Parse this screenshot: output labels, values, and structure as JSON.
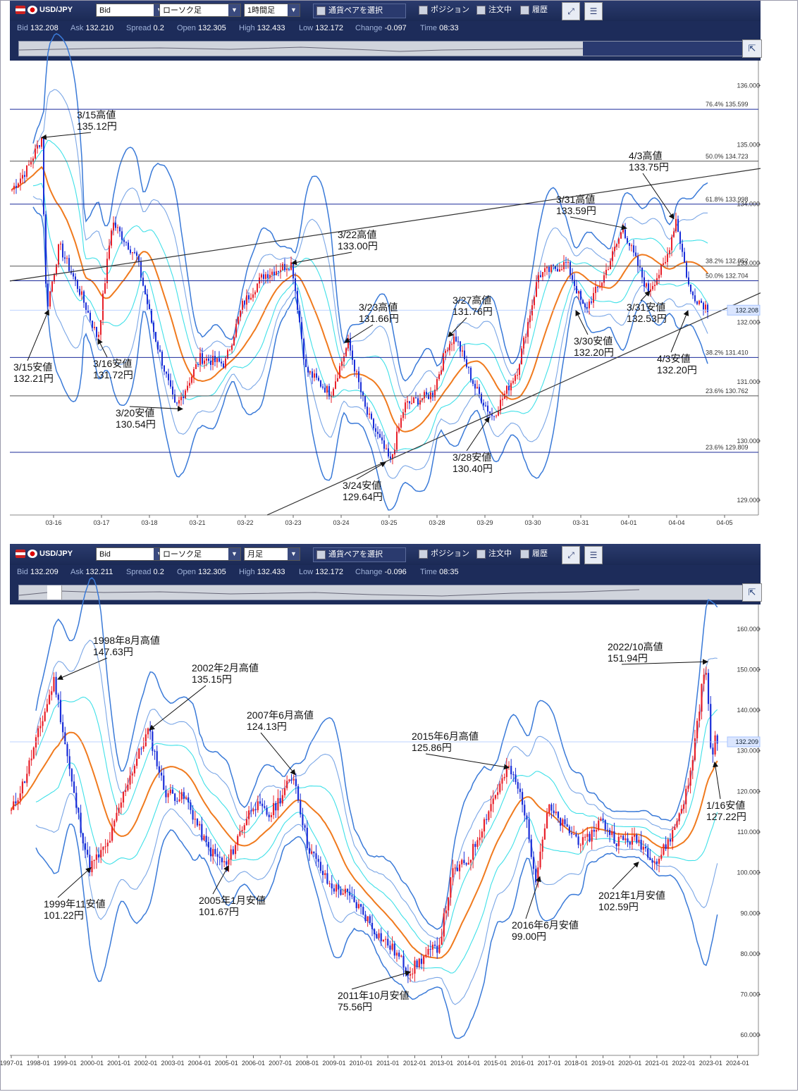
{
  "panels": [
    {
      "toolbar": {
        "pair": "USD/JPY",
        "price_type": "Bid",
        "chart_type": "ローソク足",
        "timeframe": "1時間足",
        "pair_select_label": "通貨ペアを選択",
        "position_label": "ポジション",
        "order_label": "注文中",
        "history_label": "履歴"
      },
      "quote": {
        "bid_label": "Bid",
        "bid": "132.208",
        "ask_label": "Ask",
        "ask": "132.210",
        "spread_label": "Spread",
        "spread": "0.2",
        "open_label": "Open",
        "open": "132.305",
        "high_label": "High",
        "high": "132.433",
        "low_label": "Low",
        "low": "132.172",
        "change_label": "Change",
        "change": "-0.097",
        "time_label": "Time",
        "time": "08:33"
      },
      "current_price": "132.208"
    },
    {
      "toolbar": {
        "pair": "USD/JPY",
        "price_type": "Bid",
        "chart_type": "ローソク足",
        "timeframe": "月足",
        "pair_select_label": "通貨ペアを選択",
        "position_label": "ポジション",
        "order_label": "注文中",
        "history_label": "履歴"
      },
      "quote": {
        "bid_label": "Bid",
        "bid": "132.209",
        "ask_label": "Ask",
        "ask": "132.211",
        "spread_label": "Spread",
        "spread": "0.2",
        "open_label": "Open",
        "open": "132.305",
        "high_label": "High",
        "high": "132.433",
        "low_label": "Low",
        "low": "132.172",
        "change_label": "Change",
        "change": "-0.096",
        "time_label": "Time",
        "time": "08:35"
      },
      "current_price": "132.209"
    }
  ],
  "colors": {
    "bull": "#e8202a",
    "bear": "#1a2ed8",
    "ma": "#f07a1e",
    "band1": "#3fe0e8",
    "band2": "#7aa6e6",
    "band3": "#3a7ad8",
    "hline": "#1a2a9a",
    "trend": "#333333",
    "price_line": "#a8c4ff"
  },
  "chart_data": [
    {
      "type": "candlestick",
      "series_name": "USD/JPY 1時間足",
      "ylim": [
        128.75,
        136.35
      ],
      "yticks": [
        "136.000",
        "135.000",
        "134.000",
        "133.000",
        "132.000",
        "131.000",
        "130.000",
        "129.000"
      ],
      "xticks": [
        "03-16",
        "03-17",
        "03-18",
        "03-21",
        "03-22",
        "03-23",
        "03-24",
        "03-25",
        "03-28",
        "03-29",
        "03-30",
        "03-31",
        "04-01",
        "04-04",
        "04-05"
      ],
      "close_path": [
        [
          0,
          134.2
        ],
        [
          25,
          134.6
        ],
        [
          45,
          135.12
        ],
        [
          52,
          132.21
        ],
        [
          70,
          133.3
        ],
        [
          100,
          132.5
        ],
        [
          125,
          131.72
        ],
        [
          145,
          133.7
        ],
        [
          180,
          133.1
        ],
        [
          205,
          131.8
        ],
        [
          235,
          130.54
        ],
        [
          270,
          131.4
        ],
        [
          305,
          131.3
        ],
        [
          330,
          132.3
        ],
        [
          360,
          132.8
        ],
        [
          400,
          133.0
        ],
        [
          420,
          131.2
        ],
        [
          455,
          130.8
        ],
        [
          480,
          131.66
        ],
        [
          505,
          130.5
        ],
        [
          540,
          129.64
        ],
        [
          560,
          130.6
        ],
        [
          600,
          130.8
        ],
        [
          620,
          131.6
        ],
        [
          632,
          131.76
        ],
        [
          660,
          130.9
        ],
        [
          685,
          130.4
        ],
        [
          720,
          131.2
        ],
        [
          750,
          132.8
        ],
        [
          790,
          133.0
        ],
        [
          815,
          132.2
        ],
        [
          840,
          132.7
        ],
        [
          870,
          133.59
        ],
        [
          905,
          132.53
        ],
        [
          930,
          133.0
        ],
        [
          945,
          133.75
        ],
        [
          965,
          132.5
        ],
        [
          985,
          132.3
        ],
        [
          995,
          132.2
        ]
      ],
      "annotations": [
        {
          "text": "3/15高値",
          "price": "135.12円"
        },
        {
          "text": "3/15安値",
          "price": "132.21円"
        },
        {
          "text": "3/16安値",
          "price": "131.72円"
        },
        {
          "text": "3/20安値",
          "price": "130.54円"
        },
        {
          "text": "3/22高値",
          "price": "133.00円"
        },
        {
          "text": "3/23高値",
          "price": "131.66円"
        },
        {
          "text": "3/24安値",
          "price": "129.64円"
        },
        {
          "text": "3/27高値",
          "price": "131.76円"
        },
        {
          "text": "3/28安値",
          "price": "130.40円"
        },
        {
          "text": "3/30安値",
          "price": "132.20円"
        },
        {
          "text": "3/31高値",
          "price": "133.59円"
        },
        {
          "text": "3/31安値",
          "price": "132.53円"
        },
        {
          "text": "4/3高値",
          "price": "133.75円"
        },
        {
          "text": "4/3安値",
          "price": "132.20円"
        }
      ],
      "horizontal_levels": [
        {
          "label": "76.4%",
          "value": "135.599"
        },
        {
          "label": "50.0%",
          "value": "134.723"
        },
        {
          "label": "61.8%",
          "value": "133.998"
        },
        {
          "label": "38.2%",
          "value": "132.952"
        },
        {
          "label": "50.0%",
          "value": "132.704"
        },
        {
          "label": "38.2%",
          "value": "131.410"
        },
        {
          "label": "23.6%",
          "value": "130.762"
        },
        {
          "label": "23.6%",
          "value": "129.809"
        }
      ],
      "trendlines": [
        {
          "x1": 0,
          "y1": 132.7,
          "x2": 1065,
          "y2": 134.6
        },
        {
          "x1": 365,
          "y1": 128.75,
          "x2": 1065,
          "y2": 132.5
        }
      ]
    },
    {
      "type": "candlestick",
      "series_name": "USD/JPY 月足",
      "ylim": [
        55,
        165
      ],
      "yticks": [
        "160.000",
        "150.000",
        "140.000",
        "130.000",
        "120.000",
        "110.000",
        "100.000",
        "90.000",
        "80.000",
        "70.000",
        "60.000"
      ],
      "xticks": [
        "1997-01",
        "1998-01",
        "1999-01",
        "2000-01",
        "2001-01",
        "2002-01",
        "2003-01",
        "2004-01",
        "2005-01",
        "2006-01",
        "2007-01",
        "2008-01",
        "2009-01",
        "2010-01",
        "2011-01",
        "2012-01",
        "2013-01",
        "2014-01",
        "2015-01",
        "2016-01",
        "2017-01",
        "2018-01",
        "2019-01",
        "2020-01",
        "2021-01",
        "2022-01",
        "2023-01",
        "2024-01"
      ],
      "close_path": [
        [
          1997.0,
          115
        ],
        [
          1997.5,
          123
        ],
        [
          1998.6,
          147.63
        ],
        [
          1999.3,
          120
        ],
        [
          1999.9,
          101.22
        ],
        [
          2000.6,
          107
        ],
        [
          2001.3,
          122
        ],
        [
          2002.1,
          135.15
        ],
        [
          2002.7,
          120
        ],
        [
          2003.5,
          118
        ],
        [
          2004.3,
          106
        ],
        [
          2005.0,
          101.67
        ],
        [
          2005.5,
          110
        ],
        [
          2006.0,
          117
        ],
        [
          2006.6,
          114
        ],
        [
          2007.5,
          124.13
        ],
        [
          2008.0,
          107
        ],
        [
          2008.8,
          97
        ],
        [
          2009.4,
          95
        ],
        [
          2010.0,
          91
        ],
        [
          2010.6,
          85
        ],
        [
          2011.2,
          81
        ],
        [
          2011.8,
          75.56
        ],
        [
          2012.3,
          79
        ],
        [
          2012.9,
          82
        ],
        [
          2013.4,
          100
        ],
        [
          2014.0,
          103
        ],
        [
          2014.9,
          118
        ],
        [
          2015.5,
          125.86
        ],
        [
          2016.0,
          118
        ],
        [
          2016.5,
          99.0
        ],
        [
          2016.95,
          116
        ],
        [
          2017.6,
          111
        ],
        [
          2018.3,
          107
        ],
        [
          2018.9,
          113
        ],
        [
          2019.5,
          108
        ],
        [
          2020.3,
          108
        ],
        [
          2021.0,
          102.59
        ],
        [
          2021.6,
          110
        ],
        [
          2022.2,
          122
        ],
        [
          2022.8,
          151.94
        ],
        [
          2023.05,
          127.22
        ],
        [
          2023.2,
          134
        ],
        [
          2023.25,
          132.2
        ]
      ],
      "annotations": [
        {
          "text": "1998年8月高値",
          "price": "147.63円"
        },
        {
          "text": "1999年11安値",
          "price": "101.22円"
        },
        {
          "text": "2002年2月高値",
          "price": "135.15円"
        },
        {
          "text": "2005年1月安値",
          "price": "101.67円"
        },
        {
          "text": "2007年6月高値",
          "price": "124.13円"
        },
        {
          "text": "2011年10月安値",
          "price": "75.56円"
        },
        {
          "text": "2015年6月高値",
          "price": "125.86円"
        },
        {
          "text": "2016年6月安値",
          "price": "99.00円"
        },
        {
          "text": "2021年1月安値",
          "price": "102.59円"
        },
        {
          "text": "2022/10高値",
          "price": "151.94円"
        },
        {
          "text": "1/16安値",
          "price": "127.22円"
        }
      ]
    }
  ]
}
